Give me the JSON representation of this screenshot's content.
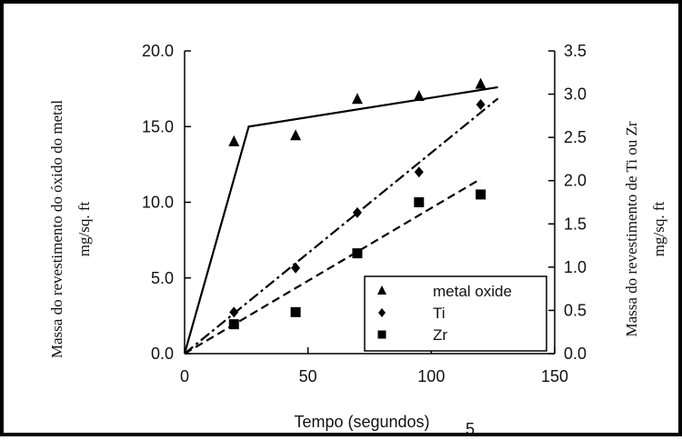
{
  "chart_data": {
    "type": "scatter",
    "title": "",
    "xlabel": "Tempo (segundos)",
    "ylabel_left": "Massa do revestimento do óxido do metal mg/sq. ft",
    "ylabel_left_lines": [
      "Massa do revestimento do óxido do metal",
      "mg/sq. ft"
    ],
    "ylabel_right": "Massa do revestimento de Ti ou Zr mg/sq. ft",
    "ylabel_right_lines": [
      "Massa do revestimento de Ti ou Zr",
      "mg/sq. ft"
    ],
    "xlim": [
      0,
      150
    ],
    "ylim_left": [
      0,
      20
    ],
    "ylim_right": [
      0,
      3.5
    ],
    "x_ticks": [
      "0",
      "50",
      "100",
      "150"
    ],
    "y_left_ticks": [
      "0.0",
      "5.0",
      "10.0",
      "15.0",
      "20.0"
    ],
    "y_right_ticks": [
      "0.0",
      "0.5",
      "1.0",
      "1.5",
      "2.0",
      "2.5",
      "3.0",
      "3.5"
    ],
    "grid": false,
    "legend_position": "bottom-right",
    "stray_mark": "5",
    "series": [
      {
        "name": "metal oxide",
        "axis": "left",
        "marker": "triangle",
        "x": [
          20,
          45,
          70,
          95,
          120
        ],
        "y": [
          14.0,
          14.4,
          16.8,
          17.0,
          17.8
        ],
        "fit": {
          "style": "solid",
          "x": [
            0,
            26,
            127
          ],
          "y": [
            0,
            15.0,
            17.6
          ]
        }
      },
      {
        "name": "Ti",
        "axis": "right",
        "marker": "diamond",
        "x": [
          20,
          45,
          70,
          95,
          120
        ],
        "y": [
          0.48,
          0.99,
          1.63,
          2.1,
          2.88
        ],
        "fit": {
          "style": "dashdot",
          "x": [
            0,
            127
          ],
          "y": [
            0,
            2.95
          ]
        }
      },
      {
        "name": "Zr",
        "axis": "right",
        "marker": "square",
        "x": [
          20,
          45,
          70,
          95,
          120
        ],
        "y": [
          0.34,
          0.48,
          1.16,
          1.75,
          1.84
        ],
        "fit": {
          "style": "dashed",
          "x": [
            0,
            120
          ],
          "y": [
            0,
            2.02
          ]
        }
      }
    ]
  }
}
